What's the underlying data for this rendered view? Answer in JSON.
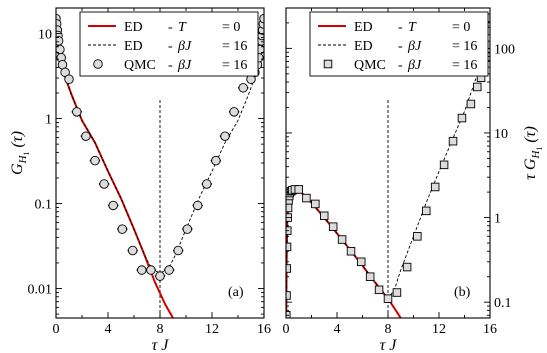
{
  "chart_data": [
    {
      "type": "line",
      "panel_label": "(a)",
      "xlabel": "τ J",
      "ylabel_main": "G",
      "ylabel_sub": "H",
      "ylabel_subsub": "1",
      "ylabel_tail": " (τ)",
      "ylabel_side": "left",
      "xlim": [
        0,
        16
      ],
      "ylim": [
        0.0045,
        20
      ],
      "yscale": "log",
      "x_ticks": [
        0,
        4,
        8,
        12,
        16
      ],
      "x_tick_labels": [
        "0",
        "4",
        "8",
        "12",
        "16"
      ],
      "y_ticks": [
        0.01,
        0.1,
        1,
        10
      ],
      "y_tick_labels": [
        "0.01",
        "0.1",
        "1",
        "10"
      ],
      "vertical_marker_x": 8,
      "legend": [
        {
          "name": "ED",
          "dash": "-",
          "param": "T",
          "eq": "= 0",
          "style": "red-solid"
        },
        {
          "name": "ED",
          "dash": "-",
          "param": "βJ",
          "eq": "= 16",
          "style": "black-dashed"
        },
        {
          "name": "QMC",
          "dash": "-",
          "param": "βJ",
          "eq": "= 16",
          "style": "circle-marker"
        }
      ],
      "series": [
        {
          "name": "ED - T = 0",
          "style": "red-solid",
          "x": [
            0,
            0.2,
            0.4,
            0.6,
            0.8,
            1.2,
            2,
            3,
            4,
            5,
            6,
            6.8,
            7.6,
            8.4,
            9
          ],
          "y": [
            15,
            6.5,
            4.4,
            3.5,
            2.8,
            1.9,
            0.95,
            0.52,
            0.24,
            0.115,
            0.05,
            0.025,
            0.012,
            0.0065,
            0.0045
          ]
        },
        {
          "name": "ED - βJ = 16",
          "style": "black-dashed",
          "x": [
            0,
            0.2,
            0.4,
            0.6,
            0.8,
            1.2,
            2,
            3,
            4,
            5,
            6,
            6.8,
            7.2,
            7.6,
            8,
            8.4,
            8.8,
            9.2,
            10,
            11,
            12,
            13,
            14,
            14.8,
            15.2,
            15.4,
            15.6,
            15.8,
            16
          ],
          "y": [
            15,
            6.5,
            4.4,
            3.5,
            2.8,
            1.9,
            0.95,
            0.52,
            0.24,
            0.115,
            0.05,
            0.025,
            0.019,
            0.016,
            0.0155,
            0.016,
            0.019,
            0.025,
            0.05,
            0.115,
            0.24,
            0.52,
            0.95,
            1.9,
            2.8,
            3.5,
            4.4,
            6.5,
            15
          ]
        },
        {
          "name": "QMC - βJ = 16",
          "style": "circle-marker",
          "x": [
            0,
            0.05,
            0.1,
            0.15,
            0.2,
            0.3,
            0.4,
            0.5,
            0.7,
            1.0,
            1.6,
            2.3,
            3.0,
            3.7,
            4.4,
            5.1,
            5.9,
            6.6,
            7.3,
            8.0,
            8.7,
            9.4,
            10.1,
            10.9,
            11.6,
            12.3,
            13.0,
            13.7,
            14.4,
            15.0,
            15.3,
            15.5,
            15.6,
            15.7,
            15.8,
            15.85,
            15.9,
            15.95,
            16
          ],
          "y": [
            15,
            13,
            11,
            9.5,
            8.2,
            6.5,
            5.2,
            4.3,
            3.5,
            2.9,
            1.2,
            0.62,
            0.32,
            0.17,
            0.095,
            0.05,
            0.028,
            0.0165,
            0.0165,
            0.014,
            0.0165,
            0.028,
            0.05,
            0.095,
            0.17,
            0.32,
            0.62,
            1.2,
            2.3,
            2.9,
            3.5,
            4.3,
            5.2,
            6.5,
            8.2,
            9.5,
            11,
            13,
            15
          ],
          "xerr": [
            0,
            0,
            0,
            0,
            0,
            0,
            0,
            0,
            0,
            0,
            0.4,
            0.4,
            0.4,
            0.4,
            0.4,
            0.4,
            0.4,
            0.4,
            0.4,
            0.4,
            0.4,
            0.4,
            0.4,
            0.4,
            0.4,
            0.4,
            0.4,
            0.4,
            0.4,
            0,
            0,
            0,
            0,
            0,
            0,
            0,
            0,
            0,
            0
          ]
        }
      ]
    },
    {
      "type": "line",
      "panel_label": "(b)",
      "xlabel": "τ J",
      "ylabel_main": "τ G",
      "ylabel_sub": "H",
      "ylabel_subsub": "1",
      "ylabel_tail": " (τ)",
      "ylabel_side": "right",
      "xlim": [
        0,
        16
      ],
      "ylim": [
        0.065,
        300
      ],
      "yscale": "log",
      "x_ticks": [
        0,
        4,
        8,
        12,
        16
      ],
      "x_tick_labels": [
        "0",
        "4",
        "8",
        "12",
        "16"
      ],
      "y_ticks": [
        0.1,
        1,
        10,
        100
      ],
      "y_tick_labels": [
        "0.1",
        "1",
        "10",
        "100"
      ],
      "vertical_marker_x": 8,
      "legend": [
        {
          "name": "ED",
          "dash": "-",
          "param": "T",
          "eq": "= 0",
          "style": "red-solid"
        },
        {
          "name": "ED",
          "dash": "-",
          "param": "βJ",
          "eq": "= 16",
          "style": "black-dashed"
        },
        {
          "name": "QMC",
          "dash": "-",
          "param": "βJ",
          "eq": "= 16",
          "style": "square-marker"
        }
      ],
      "series": [
        {
          "name": "ED - T = 0",
          "style": "red-solid",
          "x": [
            0.02,
            0.05,
            0.1,
            0.2,
            0.4,
            0.7,
            1,
            1.5,
            2,
            3,
            4,
            5,
            6,
            7,
            8,
            8.5,
            9
          ],
          "y": [
            0.065,
            0.3,
            0.9,
            1.5,
            2.0,
            2.15,
            2.1,
            1.8,
            1.5,
            1.0,
            0.65,
            0.42,
            0.27,
            0.17,
            0.11,
            0.085,
            0.065
          ]
        },
        {
          "name": "ED - βJ = 16",
          "style": "black-dashed",
          "x": [
            0.02,
            0.05,
            0.1,
            0.2,
            0.4,
            0.7,
            1,
            1.5,
            2,
            3,
            4,
            5,
            6,
            7,
            7.5,
            8,
            8.5,
            9,
            10,
            11,
            12,
            13,
            14,
            14.8,
            15.2,
            15.5,
            15.7,
            15.85,
            16
          ],
          "y": [
            0.065,
            0.3,
            0.9,
            1.5,
            2.0,
            2.15,
            2.1,
            1.8,
            1.5,
            1.0,
            0.65,
            0.42,
            0.27,
            0.17,
            0.14,
            0.11,
            0.14,
            0.24,
            0.6,
            1.5,
            3.5,
            8,
            18,
            40,
            60,
            90,
            130,
            180,
            250
          ]
        },
        {
          "name": "QMC - βJ = 16",
          "style": "square-marker",
          "x": [
            0.02,
            0.04,
            0.06,
            0.08,
            0.1,
            0.13,
            0.16,
            0.2,
            0.25,
            0.3,
            0.4,
            0.5,
            0.7,
            1.0,
            1.6,
            2.3,
            3.0,
            3.7,
            4.4,
            5.1,
            5.9,
            6.6,
            7.3,
            8.0,
            8.7,
            9.5,
            10.3,
            11.0,
            11.7,
            12.4,
            13.1,
            13.8,
            14.5,
            15.0,
            15.3,
            15.5,
            15.7,
            15.85,
            15.93,
            16
          ],
          "y": [
            0.07,
            0.12,
            0.25,
            0.45,
            0.7,
            1.0,
            1.3,
            1.6,
            1.8,
            1.95,
            2.05,
            2.1,
            2.15,
            2.15,
            1.7,
            1.45,
            1.05,
            0.78,
            0.55,
            0.4,
            0.3,
            0.2,
            0.14,
            0.11,
            0.13,
            0.26,
            0.6,
            1.2,
            2.3,
            4.2,
            8,
            15,
            22,
            35,
            45,
            60,
            80,
            110,
            160,
            230
          ]
        }
      ]
    }
  ]
}
